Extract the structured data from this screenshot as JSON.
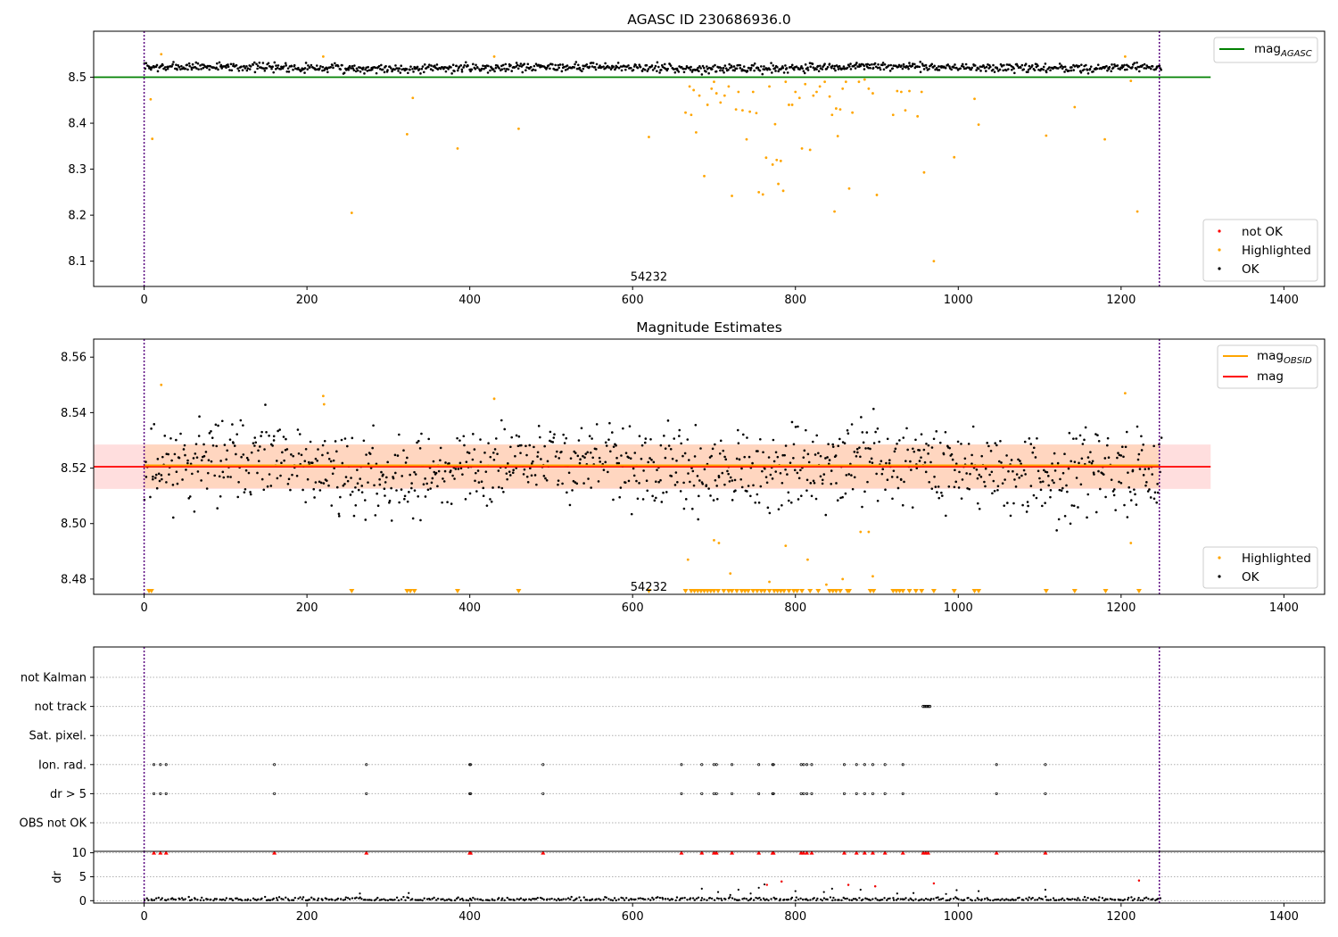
{
  "chart_data": [
    {
      "type": "scatter",
      "title": "AGASC ID 230686936.0",
      "xlim": [
        -62,
        1450
      ],
      "ylim": [
        8.045,
        8.6
      ],
      "xticks": [
        0,
        200,
        400,
        600,
        800,
        1000,
        1200,
        1400
      ],
      "yticks": [
        8.1,
        8.2,
        8.3,
        8.4,
        8.5
      ],
      "vlines": [
        0,
        1247
      ],
      "annotation": {
        "text": "54232",
        "x": 620,
        "y": 8.065
      },
      "reference_line": {
        "name": "mag_AGASC",
        "y": 8.5,
        "x_range": [
          -62,
          1310
        ],
        "color": "#008000"
      },
      "legend_lines": [
        {
          "label": "mag",
          "sub": "AGASC",
          "color": "#008000"
        }
      ],
      "legend_points": [
        {
          "label": "not OK",
          "color": "#ff0000"
        },
        {
          "label": "Highlighted",
          "color": "#ffa500"
        },
        {
          "label": "OK",
          "color": "#000000"
        }
      ],
      "ok_band": {
        "x_range": [
          0,
          1250
        ],
        "center": 8.521,
        "spread": 0.008
      },
      "highlighted_points": [
        [
          8,
          8.452
        ],
        [
          10,
          8.366
        ],
        [
          21,
          8.55
        ],
        [
          220,
          8.545
        ],
        [
          255,
          8.205
        ],
        [
          323,
          8.376
        ],
        [
          330,
          8.455
        ],
        [
          385,
          8.345
        ],
        [
          430,
          8.545
        ],
        [
          460,
          8.388
        ],
        [
          620,
          8.37
        ],
        [
          665,
          8.423
        ],
        [
          670,
          8.48
        ],
        [
          672,
          8.418
        ],
        [
          675,
          8.472
        ],
        [
          678,
          8.38
        ],
        [
          682,
          8.46
        ],
        [
          688,
          8.285
        ],
        [
          692,
          8.44
        ],
        [
          697,
          8.475
        ],
        [
          700,
          8.49
        ],
        [
          703,
          8.465
        ],
        [
          708,
          8.445
        ],
        [
          713,
          8.46
        ],
        [
          718,
          8.48
        ],
        [
          722,
          8.242
        ],
        [
          727,
          8.43
        ],
        [
          730,
          8.468
        ],
        [
          735,
          8.428
        ],
        [
          740,
          8.365
        ],
        [
          744,
          8.425
        ],
        [
          748,
          8.468
        ],
        [
          752,
          8.422
        ],
        [
          755,
          8.25
        ],
        [
          760,
          8.245
        ],
        [
          764,
          8.325
        ],
        [
          768,
          8.48
        ],
        [
          772,
          8.31
        ],
        [
          775,
          8.398
        ],
        [
          777,
          8.32
        ],
        [
          779,
          8.268
        ],
        [
          782,
          8.318
        ],
        [
          785,
          8.253
        ],
        [
          788,
          8.49
        ],
        [
          792,
          8.44
        ],
        [
          796,
          8.44
        ],
        [
          800,
          8.468
        ],
        [
          805,
          8.455
        ],
        [
          808,
          8.345
        ],
        [
          812,
          8.485
        ],
        [
          818,
          8.342
        ],
        [
          822,
          8.46
        ],
        [
          826,
          8.468
        ],
        [
          830,
          8.48
        ],
        [
          836,
          8.49
        ],
        [
          842,
          8.458
        ],
        [
          845,
          8.418
        ],
        [
          848,
          8.208
        ],
        [
          850,
          8.432
        ],
        [
          852,
          8.372
        ],
        [
          855,
          8.43
        ],
        [
          858,
          8.475
        ],
        [
          862,
          8.49
        ],
        [
          866,
          8.258
        ],
        [
          870,
          8.423
        ],
        [
          878,
          8.49
        ],
        [
          885,
          8.495
        ],
        [
          890,
          8.475
        ],
        [
          895,
          8.465
        ],
        [
          900,
          8.244
        ],
        [
          920,
          8.418
        ],
        [
          925,
          8.47
        ],
        [
          930,
          8.468
        ],
        [
          935,
          8.428
        ],
        [
          940,
          8.47
        ],
        [
          950,
          8.415
        ],
        [
          955,
          8.468
        ],
        [
          958,
          8.293
        ],
        [
          970,
          8.1
        ],
        [
          995,
          8.326
        ],
        [
          1020,
          8.453
        ],
        [
          1025,
          8.397
        ],
        [
          1108,
          8.373
        ],
        [
          1143,
          8.435
        ],
        [
          1180,
          8.365
        ],
        [
          1205,
          8.545
        ],
        [
          1212,
          8.492
        ],
        [
          1220,
          8.208
        ]
      ]
    },
    {
      "type": "scatter",
      "title": "Magnitude Estimates",
      "xlim": [
        -62,
        1450
      ],
      "ylim": [
        8.4745,
        8.5665
      ],
      "xticks": [
        0,
        200,
        400,
        600,
        800,
        1000,
        1200,
        1400
      ],
      "yticks": [
        8.48,
        8.5,
        8.52,
        8.54,
        8.56
      ],
      "vlines": [
        0,
        1247
      ],
      "annotation": {
        "text": "54232",
        "x": 620,
        "y": 8.477
      },
      "mag_line": {
        "name": "mag",
        "y": 8.5205,
        "x_range": [
          -62,
          1310
        ],
        "color": "#ff0000"
      },
      "mag_band": {
        "y_range": [
          8.5125,
          8.5285
        ],
        "x_range": [
          -62,
          1310
        ],
        "color": "#ffd0d0"
      },
      "obsid_line": {
        "name": "mag_OBSID",
        "y": 8.521,
        "x_range": [
          0,
          1247
        ],
        "color": "#ffa500"
      },
      "obsid_band": {
        "y_range": [
          8.5128,
          8.5285
        ],
        "x_range": [
          0,
          1247
        ],
        "color": "#ffd5bb"
      },
      "legend_lines": [
        {
          "label": "mag",
          "sub": "OBSID",
          "color": "#ffa500"
        },
        {
          "label": "mag",
          "sub": "",
          "color": "#ff0000"
        }
      ],
      "legend_points": [
        {
          "label": "Highlighted",
          "color": "#ffa500"
        },
        {
          "label": "OK",
          "color": "#000000"
        }
      ],
      "ok_band": {
        "x_range": [
          0,
          1250
        ],
        "center": 8.52,
        "spread": 0.012
      },
      "highlighted_points": [
        [
          21,
          8.55
        ],
        [
          220,
          8.546
        ],
        [
          221,
          8.543
        ],
        [
          430,
          8.545
        ],
        [
          668,
          8.487
        ],
        [
          700,
          8.494
        ],
        [
          706,
          8.493
        ],
        [
          720,
          8.482
        ],
        [
          768,
          8.479
        ],
        [
          788,
          8.492
        ],
        [
          815,
          8.487
        ],
        [
          838,
          8.478
        ],
        [
          858,
          8.48
        ],
        [
          880,
          8.497
        ],
        [
          890,
          8.497
        ],
        [
          895,
          8.481
        ],
        [
          1205,
          8.547
        ],
        [
          1212,
          8.493
        ]
      ],
      "below_axis_x": [
        6,
        9,
        255,
        323,
        327,
        332,
        385,
        460,
        620,
        665,
        672,
        676,
        680,
        684,
        688,
        692,
        696,
        700,
        705,
        712,
        718,
        722,
        728,
        734,
        738,
        742,
        748,
        753,
        758,
        762,
        768,
        774,
        778,
        782,
        786,
        792,
        798,
        802,
        808,
        818,
        828,
        842,
        846,
        850,
        855,
        864,
        866,
        892,
        896,
        920,
        924,
        928,
        932,
        940,
        948,
        955,
        970,
        995,
        1020,
        1025,
        1108,
        1143,
        1181,
        1222
      ]
    },
    {
      "type": "scatter",
      "title": "",
      "xlim": [
        -62,
        1450
      ],
      "category_ticks": [
        "not Kalman",
        "not track",
        "Sat. pixel.",
        "Ion. rad.",
        "dr > 5",
        "OBS not OK"
      ],
      "vlines": [
        0,
        1247
      ],
      "not_track_x": [
        957,
        959,
        961,
        963,
        965
      ],
      "flag_x": [
        12,
        20,
        27,
        160,
        273,
        400,
        401,
        490,
        660,
        685,
        700,
        703,
        722,
        755,
        772,
        773,
        807,
        810,
        814,
        820,
        860,
        875,
        885,
        895,
        910,
        932,
        1047,
        1107
      ]
    },
    {
      "type": "scatter",
      "title": "",
      "xlim": [
        -62,
        1450
      ],
      "ylim": [
        -0.5,
        10.3
      ],
      "xticks": [
        0,
        200,
        400,
        600,
        800,
        1000,
        1200,
        1400
      ],
      "yticks": [
        0,
        5,
        10
      ],
      "ylabel": "dr",
      "clipped_at": 10,
      "vlines": [
        0,
        1247
      ],
      "flag_x": [
        12,
        20,
        27,
        160,
        273,
        400,
        401,
        490,
        660,
        685,
        700,
        703,
        722,
        755,
        772,
        773,
        807,
        810,
        814,
        820,
        860,
        875,
        885,
        895,
        910,
        932,
        957,
        960,
        963,
        1047,
        1107
      ],
      "outliers": [
        [
          265,
          1.5
        ],
        [
          325,
          1.6
        ],
        [
          685,
          2.5
        ],
        [
          705,
          1.8
        ],
        [
          720,
          1.2
        ],
        [
          730,
          2.3
        ],
        [
          745,
          1.5
        ],
        [
          755,
          2.7
        ],
        [
          762,
          3.4
        ],
        [
          783,
          4.0
        ],
        [
          800,
          2.0
        ],
        [
          835,
          1.8
        ],
        [
          845,
          2.5
        ],
        [
          865,
          3.3
        ],
        [
          880,
          2.3
        ],
        [
          898,
          3.0
        ],
        [
          925,
          1.5
        ],
        [
          945,
          1.6
        ],
        [
          970,
          3.6
        ],
        [
          985,
          1.4
        ],
        [
          998,
          2.2
        ],
        [
          1025,
          2.0
        ],
        [
          1107,
          2.3
        ],
        [
          1222,
          4.2
        ]
      ]
    }
  ]
}
